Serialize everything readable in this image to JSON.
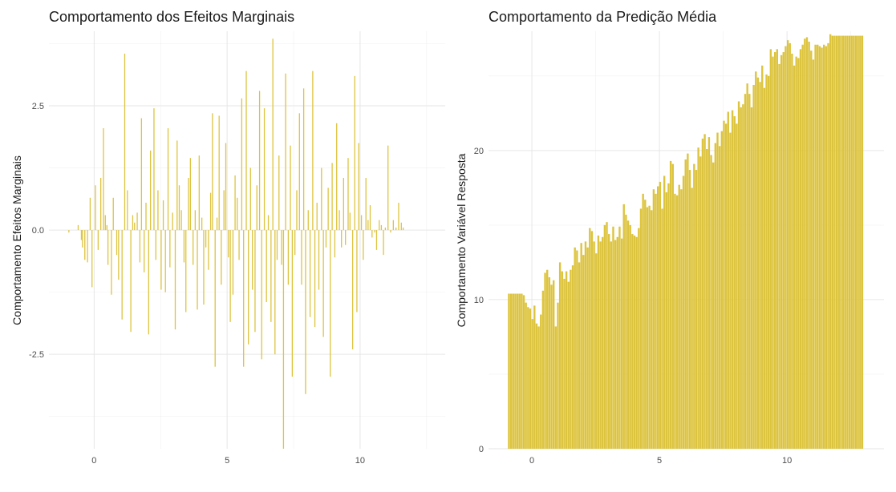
{
  "chart_data": [
    {
      "type": "bar",
      "title": "Comportamento dos Efeitos Marginais",
      "xlabel": "",
      "ylabel": "Comportamento Efeitos Marginais",
      "bar_color": "#DDC43F",
      "xlim": [
        -1.7,
        13.2
      ],
      "ylim": [
        -4.4,
        4.0
      ],
      "xticks": [
        0,
        5,
        10
      ],
      "xtick_labels": [
        "0",
        "5",
        "10"
      ],
      "yticks": [
        -2.5,
        0,
        2.5
      ],
      "ytick_labels": [
        "-2.5",
        "0.0",
        "2.5"
      ],
      "grid": true,
      "x": [
        -0.95,
        -0.6,
        -0.48,
        -0.44,
        -0.35,
        -0.25,
        -0.15,
        -0.08,
        0.05,
        0.15,
        0.25,
        0.35,
        0.42,
        0.48,
        0.52,
        0.65,
        0.72,
        0.85,
        0.92,
        1.05,
        1.15,
        1.25,
        1.38,
        1.45,
        1.52,
        1.62,
        1.72,
        1.78,
        1.88,
        1.95,
        2.05,
        2.12,
        2.25,
        2.32,
        2.4,
        2.52,
        2.6,
        2.68,
        2.78,
        2.85,
        2.95,
        3.05,
        3.12,
        3.2,
        3.28,
        3.38,
        3.45,
        3.55,
        3.62,
        3.72,
        3.8,
        3.88,
        3.95,
        4.05,
        4.12,
        4.2,
        4.3,
        4.38,
        4.45,
        4.55,
        4.62,
        4.7,
        4.78,
        4.88,
        4.95,
        5.05,
        5.12,
        5.22,
        5.3,
        5.38,
        5.45,
        5.55,
        5.62,
        5.72,
        5.8,
        5.88,
        5.95,
        6.05,
        6.12,
        6.22,
        6.3,
        6.4,
        6.48,
        6.55,
        6.65,
        6.72,
        6.8,
        6.88,
        6.95,
        7.05,
        7.12,
        7.2,
        7.3,
        7.38,
        7.45,
        7.55,
        7.62,
        7.72,
        7.8,
        7.88,
        7.95,
        8.05,
        8.12,
        8.22,
        8.3,
        8.38,
        8.45,
        8.55,
        8.62,
        8.72,
        8.8,
        8.88,
        8.95,
        9.05,
        9.12,
        9.22,
        9.3,
        9.38,
        9.45,
        9.55,
        9.62,
        9.72,
        9.8,
        9.88,
        9.95,
        10.05,
        10.12,
        10.22,
        10.3,
        10.38,
        10.45,
        10.55,
        10.62,
        10.72,
        10.8,
        10.88,
        10.95,
        11.05,
        11.15,
        11.25,
        11.35,
        11.45,
        11.55,
        11.62
      ],
      "values": [
        -0.05,
        0.1,
        -0.2,
        -0.35,
        -0.6,
        -0.65,
        0.65,
        -1.15,
        0.9,
        -0.4,
        1.05,
        2.05,
        0.3,
        0.1,
        -0.7,
        -1.3,
        0.65,
        -0.5,
        -1.0,
        -1.8,
        3.55,
        0.8,
        -2.05,
        0.3,
        0.15,
        0.35,
        -0.65,
        2.25,
        -0.85,
        0.55,
        -2.1,
        1.6,
        2.45,
        -0.6,
        0.8,
        -1.2,
        0.6,
        -1.25,
        2.05,
        -0.75,
        0.35,
        -2.0,
        1.8,
        0.9,
        0.4,
        -0.65,
        -1.65,
        1.05,
        1.45,
        -0.7,
        0.4,
        -1.6,
        1.5,
        0.25,
        -1.5,
        -0.35,
        -0.8,
        0.75,
        2.35,
        -2.75,
        0.25,
        2.3,
        -1.1,
        0.8,
        1.75,
        -0.55,
        -1.85,
        -1.3,
        1.1,
        0.65,
        -0.6,
        2.65,
        -2.75,
        3.2,
        -2.3,
        1.25,
        -1.2,
        -2.05,
        0.9,
        2.8,
        -2.6,
        2.45,
        -1.45,
        0.3,
        -1.85,
        3.85,
        -2.5,
        -0.6,
        1.5,
        -0.7,
        -4.4,
        3.15,
        -1.1,
        1.7,
        -2.95,
        -0.5,
        0.8,
        2.35,
        -1.1,
        2.85,
        -3.3,
        0.4,
        -1.75,
        3.2,
        -1.95,
        0.55,
        -1.2,
        1.25,
        -2.15,
        -0.35,
        0.85,
        -2.95,
        1.35,
        -0.55,
        2.15,
        0.4,
        -0.35,
        1.05,
        -0.3,
        1.45,
        0.35,
        -2.4,
        3.1,
        -1.65,
        1.75,
        0.3,
        -0.6,
        1.05,
        0.2,
        0.5,
        -0.15,
        -0.05,
        -0.4,
        0.2,
        0.1,
        -0.5,
        0.05,
        1.7,
        -0.05,
        0.2,
        0.05,
        0.55,
        0.15,
        0.05
      ]
    },
    {
      "type": "bar",
      "title": "Comportamento da Predição Média",
      "xlabel": "",
      "ylabel": "Comportamento Variável Resposta",
      "bar_color": "#DDC43F",
      "xlim": [
        -1.7,
        13.8
      ],
      "ylim": [
        0,
        28
      ],
      "xticks": [
        0,
        5,
        10
      ],
      "xtick_labels": [
        "0",
        "5",
        "10"
      ],
      "yticks": [
        0,
        10,
        20
      ],
      "ytick_labels": [
        "0",
        "10",
        "20"
      ],
      "grid": true,
      "x_start": -0.9,
      "x_end": 12.95,
      "values": [
        10.4,
        10.4,
        10.4,
        10.4,
        10.4,
        10.4,
        10.4,
        10.3,
        9.8,
        9.5,
        9.4,
        8.7,
        9.6,
        8.4,
        8.2,
        9.0,
        10.6,
        11.8,
        12.0,
        11.5,
        11.0,
        11.3,
        8.2,
        9.8,
        12.5,
        11.9,
        11.4,
        11.9,
        11.2,
        12.0,
        12.3,
        13.5,
        13.3,
        12.5,
        13.8,
        13.0,
        13.9,
        13.5,
        14.8,
        14.6,
        13.9,
        13.1,
        14.3,
        13.9,
        14.2,
        15.0,
        15.2,
        14.4,
        13.9,
        14.9,
        14.0,
        14.2,
        14.9,
        14.1,
        16.4,
        15.7,
        15.3,
        15.0,
        14.4,
        14.3,
        14.2,
        14.8,
        16.1,
        17.1,
        16.7,
        16.2,
        16.3,
        16.0,
        17.4,
        17.1,
        17.6,
        17.9,
        16.1,
        18.3,
        17.2,
        17.8,
        19.3,
        19.1,
        17.1,
        17.0,
        17.7,
        17.4,
        18.3,
        19.4,
        19.8,
        18.7,
        17.5,
        19.1,
        18.7,
        20.2,
        19.6,
        20.8,
        21.1,
        20.1,
        20.9,
        19.7,
        19.2,
        20.5,
        21.2,
        20.3,
        21.3,
        22.0,
        21.8,
        22.6,
        21.2,
        22.7,
        22.3,
        21.8,
        23.3,
        22.9,
        23.1,
        23.8,
        24.5,
        23.8,
        22.9,
        24.4,
        25.3,
        24.9,
        24.6,
        25.7,
        24.2,
        25.1,
        25.0,
        26.8,
        26.3,
        26.6,
        26.8,
        25.8,
        26.4,
        26.6,
        27.0,
        27.4,
        27.2,
        26.5,
        25.7,
        26.3,
        26.2,
        26.8,
        27.1,
        27.5,
        27.6,
        27.3,
        26.7,
        26.1,
        27.1,
        27.1,
        27.0,
        26.9,
        27.1,
        27.0,
        27.2,
        27.8,
        27.7,
        27.7,
        27.7,
        27.7,
        27.7,
        27.7,
        27.7,
        27.7,
        27.7,
        27.7,
        27.7,
        27.7,
        27.7,
        27.7,
        27.7
      ]
    }
  ]
}
